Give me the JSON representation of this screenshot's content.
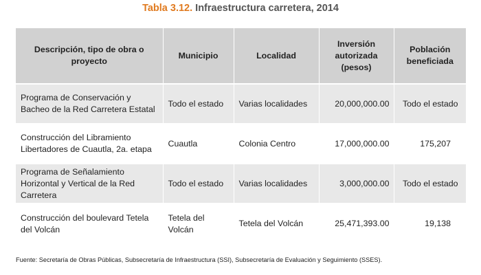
{
  "title": {
    "number": "Tabla 3.12.",
    "text": "Infraestructura carretera, 2014"
  },
  "table": {
    "headers": [
      "Descripción, tipo de obra o proyecto",
      "Municipio",
      "Localidad",
      "Inversión autorizada (pesos)",
      "Población beneficiada"
    ],
    "rows": [
      {
        "descripcion": "Programa de Conservación y Bacheo de la Red Carretera Estatal",
        "municipio": "Todo el estado",
        "localidad": "Varias localidades",
        "inversion": "20,000,000.00",
        "poblacion": "Todo el estado"
      },
      {
        "descripcion": "Construcción del Libramiento Libertadores de Cuautla, 2a. etapa",
        "municipio": "Cuautla",
        "localidad": "Colonia Centro",
        "inversion": "17,000,000.00",
        "poblacion": "175,207"
      },
      {
        "descripcion": "Programa de Señalamiento Horizontal y Vertical de la Red Carretera",
        "municipio": "Todo el estado",
        "localidad": "Varias localidades",
        "inversion": "3,000,000.00",
        "poblacion": "Todo el estado"
      },
      {
        "descripcion": "Construcción del boulevard Tetela del Volcán",
        "municipio": "Tetela del Volcán",
        "localidad": "Tetela del Volcán",
        "inversion": "25,471,393.00",
        "poblacion": "19,138"
      }
    ]
  },
  "source": "Fuente: Secretaría de Obras Públicas, Subsecretaría de Infraestructura (SSI), Subsecretaría de Evaluación y Seguimiento (SSES)."
}
